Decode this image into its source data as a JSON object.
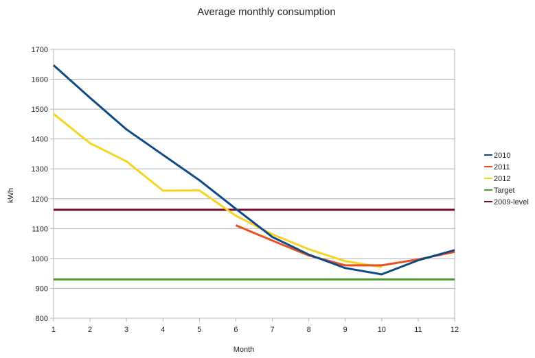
{
  "chart_data": {
    "type": "line",
    "title": "Average monthly consumption",
    "xlabel": "Month",
    "ylabel": "kWh",
    "x": [
      1,
      2,
      3,
      4,
      5,
      6,
      7,
      8,
      9,
      10,
      11,
      12
    ],
    "xlim": [
      1,
      12
    ],
    "ylim": [
      800,
      1700
    ],
    "yticks": [
      800,
      900,
      1000,
      1100,
      1200,
      1300,
      1400,
      1500,
      1600,
      1700
    ],
    "grid": true,
    "legend_position": "right",
    "series": [
      {
        "name": "2010",
        "color": "#0e4a84",
        "x": [
          1,
          2,
          3,
          4,
          5,
          6,
          7,
          8,
          9,
          10,
          11,
          12
        ],
        "values": [
          1647,
          1538,
          1432,
          1347,
          1262,
          1166,
          1072,
          1013,
          968,
          947,
          994,
          1028
        ]
      },
      {
        "name": "2011",
        "color": "#e8501e",
        "x": [
          6,
          7,
          8,
          9,
          10,
          11,
          12
        ],
        "values": [
          1111,
          1060,
          1010,
          977,
          977,
          997,
          1022
        ]
      },
      {
        "name": "2012",
        "color": "#f5d321",
        "x": [
          1,
          2,
          3,
          4,
          5,
          6,
          7,
          8,
          9,
          10
        ],
        "values": [
          1484,
          1386,
          1325,
          1227,
          1228,
          1143,
          1081,
          1031,
          991,
          971
        ]
      },
      {
        "name": "Target",
        "color": "#4c9a2a",
        "x": [
          1,
          12
        ],
        "values": [
          930,
          930
        ]
      },
      {
        "name": "2009-level",
        "color": "#7b0a2d",
        "x": [
          1,
          12
        ],
        "values": [
          1163,
          1163
        ]
      }
    ]
  }
}
